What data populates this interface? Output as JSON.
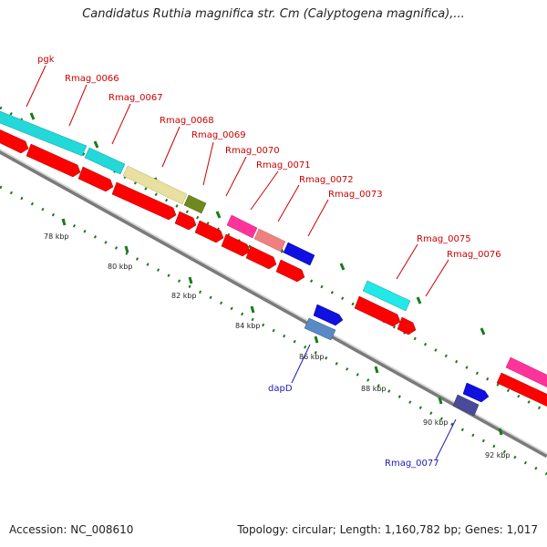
{
  "title": "Candidatus Ruthia magnifica str. Cm (Calyptogena magnifica),...",
  "footer": {
    "accession": "Accession: NC_008610",
    "topology": "Topology: circular; Length: 1,160,782 bp; Genes: 1,017"
  },
  "colors": {
    "cds": "#ff0000",
    "rna_cyan": "#22d8d8",
    "khaki": "#e8e0a0",
    "olive": "#6e8a1e",
    "pink": "#ff3399",
    "salmon": "#f08080",
    "blue": "#1010e0",
    "steel": "#5a8ac6",
    "slate": "#4a4a9a",
    "label_red": "#cc0000",
    "label_blue": "#1a1ab0"
  },
  "tick_labels": [
    "78 kbp",
    "80 kbp",
    "82 kbp",
    "84 kbp",
    "86 kbp",
    "88 kbp",
    "90 kbp",
    "92 kbp"
  ],
  "gene_labels": {
    "pgk": "pgk",
    "rmag_0066": "Rmag_0066",
    "rmag_0067": "Rmag_0067",
    "rmag_0068": "Rmag_0068",
    "rmag_0069": "Rmag_0069",
    "rmag_0070": "Rmag_0070",
    "rmag_0071": "Rmag_0071",
    "rmag_0072": "Rmag_0072",
    "rmag_0073": "Rmag_0073",
    "rmag_0075": "Rmag_0075",
    "rmag_0076": "Rmag_0076",
    "dapD": "dapD",
    "rmag_0077": "Rmag_0077"
  }
}
